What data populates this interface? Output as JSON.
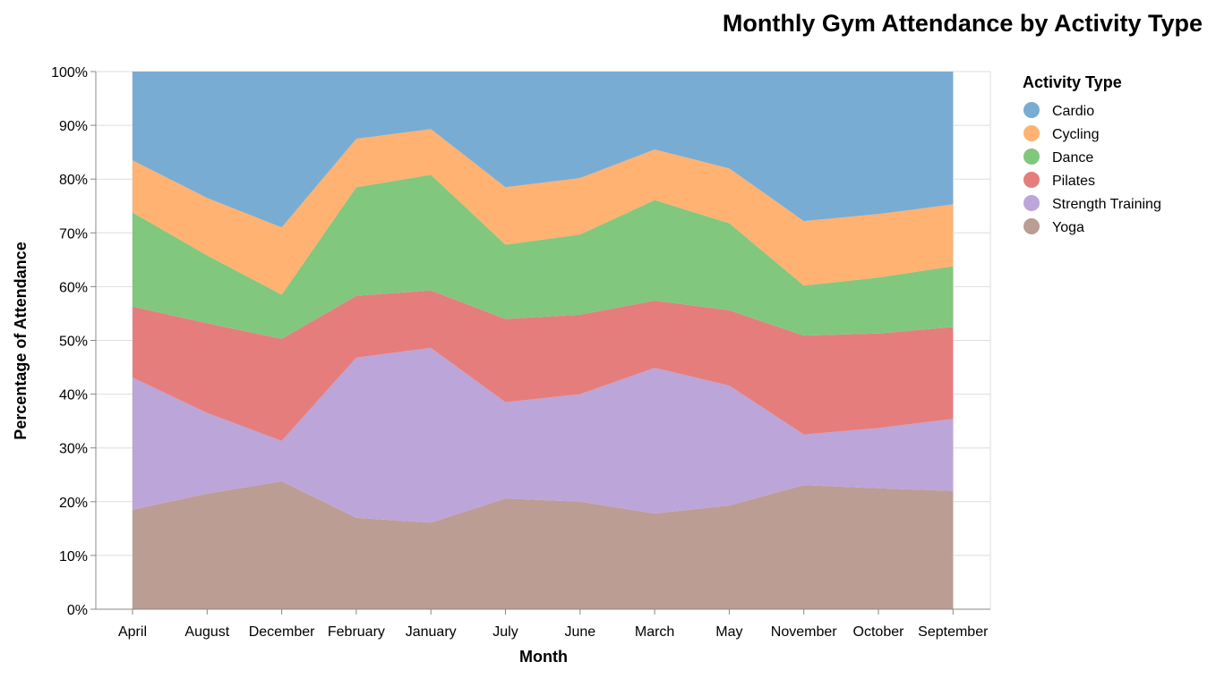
{
  "chart_data": {
    "type": "area",
    "stacked": "normalize",
    "title": "Monthly Gym Attendance by Activity Type",
    "xlabel": "Month",
    "ylabel": "Percentage of Attendance",
    "ylim": [
      0,
      100
    ],
    "y_ticks": [
      "0%",
      "10%",
      "20%",
      "30%",
      "40%",
      "50%",
      "60%",
      "70%",
      "80%",
      "90%",
      "100%"
    ],
    "grid": true,
    "legend_title": "Activity Type",
    "legend_position": "right",
    "categories": [
      "April",
      "August",
      "December",
      "February",
      "January",
      "July",
      "June",
      "March",
      "May",
      "November",
      "October",
      "September"
    ],
    "series": [
      {
        "name": "Cardio",
        "color": "#79acd3",
        "values": [
          16.5,
          23.5,
          29.0,
          12.5,
          10.7,
          21.5,
          19.8,
          14.5,
          18.0,
          27.8,
          26.5,
          24.7
        ]
      },
      {
        "name": "Cycling",
        "color": "#ffb272",
        "values": [
          9.7,
          10.7,
          12.5,
          9.0,
          8.5,
          10.7,
          10.5,
          9.4,
          10.2,
          12.0,
          11.8,
          11.5
        ]
      },
      {
        "name": "Dance",
        "color": "#81c77e",
        "values": [
          17.5,
          12.6,
          8.2,
          20.2,
          21.5,
          13.8,
          14.9,
          18.7,
          16.2,
          9.3,
          10.4,
          11.3
        ]
      },
      {
        "name": "Pilates",
        "color": "#e67d7d",
        "values": [
          13.2,
          16.7,
          19.0,
          11.5,
          10.7,
          15.5,
          14.8,
          12.5,
          14.0,
          18.4,
          17.6,
          17.1
        ]
      },
      {
        "name": "Strength Training",
        "color": "#bca5d8",
        "values": [
          24.6,
          15.0,
          7.5,
          29.8,
          32.5,
          17.9,
          20.0,
          27.1,
          22.3,
          9.4,
          11.2,
          13.4
        ]
      },
      {
        "name": "Yoga",
        "color": "#bb9d94",
        "values": [
          18.5,
          21.5,
          23.8,
          17.0,
          16.1,
          20.6,
          20.0,
          17.8,
          19.3,
          23.1,
          22.5,
          22.0
        ]
      }
    ]
  }
}
